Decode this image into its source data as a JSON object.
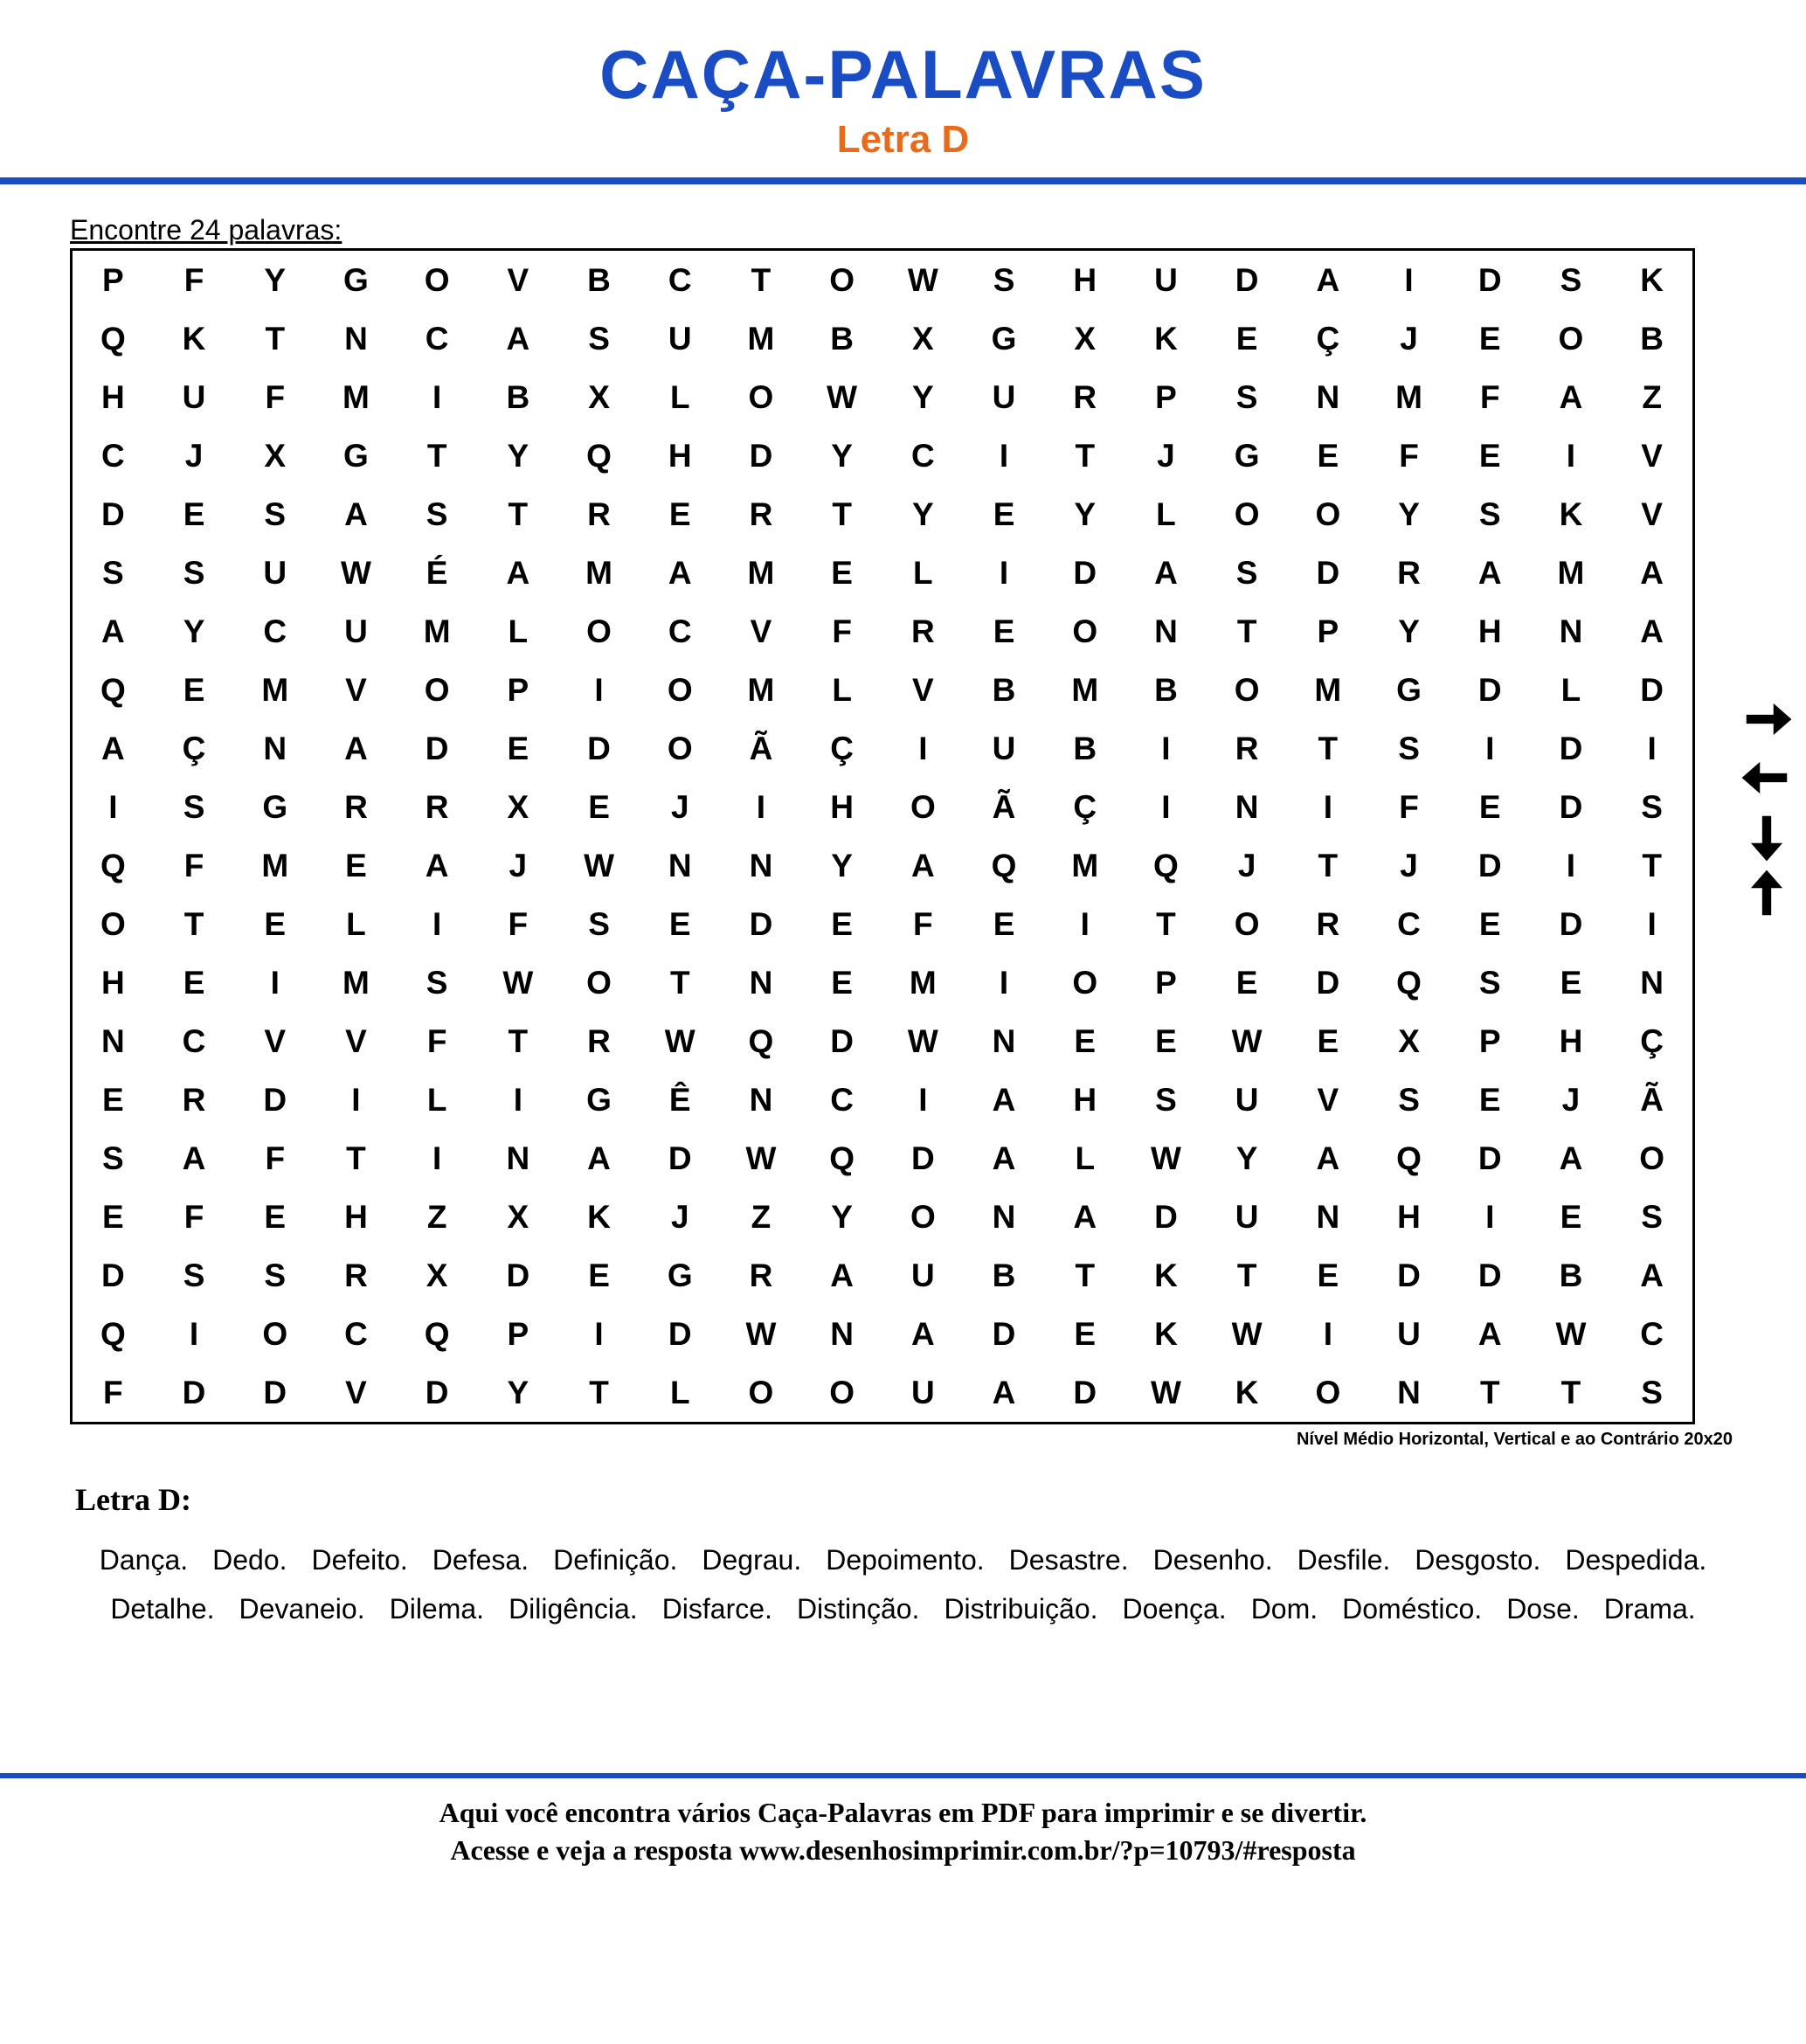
{
  "colors": {
    "title": "#1a4cc4",
    "subtitle": "#e86b1c",
    "rule": "#1a4cc4",
    "text": "#000000",
    "background": "#ffffff"
  },
  "header": {
    "title": "CAÇA-PALAVRAS",
    "subtitle": "Letra D"
  },
  "instruction": "Encontre 24 palavras:",
  "puzzle": {
    "cols": 20,
    "rows": 20,
    "grid": [
      [
        "P",
        "F",
        "Y",
        "G",
        "O",
        "V",
        "B",
        "C",
        "T",
        "O",
        "W",
        "S",
        "H",
        "U",
        "D",
        "A",
        "I",
        "D",
        "S",
        "K"
      ],
      [
        "Q",
        "K",
        "T",
        "N",
        "C",
        "A",
        "S",
        "U",
        "M",
        "B",
        "X",
        "G",
        "X",
        "K",
        "E",
        "Ç",
        "J",
        "E",
        "O",
        "B"
      ],
      [
        "H",
        "U",
        "F",
        "M",
        "I",
        "B",
        "X",
        "L",
        "O",
        "W",
        "Y",
        "U",
        "R",
        "P",
        "S",
        "N",
        "M",
        "F",
        "A",
        "Z"
      ],
      [
        "C",
        "J",
        "X",
        "G",
        "T",
        "Y",
        "Q",
        "H",
        "D",
        "Y",
        "C",
        "I",
        "T",
        "J",
        "G",
        "E",
        "F",
        "E",
        "I",
        "V"
      ],
      [
        "D",
        "E",
        "S",
        "A",
        "S",
        "T",
        "R",
        "E",
        "R",
        "T",
        "Y",
        "E",
        "Y",
        "L",
        "O",
        "O",
        "Y",
        "S",
        "K",
        "V"
      ],
      [
        "S",
        "S",
        "U",
        "W",
        "É",
        "A",
        "M",
        "A",
        "M",
        "E",
        "L",
        "I",
        "D",
        "A",
        "S",
        "D",
        "R",
        "A",
        "M",
        "A"
      ],
      [
        "A",
        "Y",
        "C",
        "U",
        "M",
        "L",
        "O",
        "C",
        "V",
        "F",
        "R",
        "E",
        "O",
        "N",
        "T",
        "P",
        "Y",
        "H",
        "N",
        "A"
      ],
      [
        "Q",
        "E",
        "M",
        "V",
        "O",
        "P",
        "I",
        "O",
        "M",
        "L",
        "V",
        "B",
        "M",
        "B",
        "O",
        "M",
        "G",
        "D",
        "L",
        "D"
      ],
      [
        "A",
        "Ç",
        "N",
        "A",
        "D",
        "E",
        "D",
        "O",
        "Ã",
        "Ç",
        "I",
        "U",
        "B",
        "I",
        "R",
        "T",
        "S",
        "I",
        "D",
        "I"
      ],
      [
        "I",
        "S",
        "G",
        "R",
        "R",
        "X",
        "E",
        "J",
        "I",
        "H",
        "O",
        "Ã",
        "Ç",
        "I",
        "N",
        "I",
        "F",
        "E",
        "D",
        "S"
      ],
      [
        "Q",
        "F",
        "M",
        "E",
        "A",
        "J",
        "W",
        "N",
        "N",
        "Y",
        "A",
        "Q",
        "M",
        "Q",
        "J",
        "T",
        "J",
        "D",
        "I",
        "T"
      ],
      [
        "O",
        "T",
        "E",
        "L",
        "I",
        "F",
        "S",
        "E",
        "D",
        "E",
        "F",
        "E",
        "I",
        "T",
        "O",
        "R",
        "C",
        "E",
        "D",
        "I"
      ],
      [
        "H",
        "E",
        "I",
        "M",
        "S",
        "W",
        "O",
        "T",
        "N",
        "E",
        "M",
        "I",
        "O",
        "P",
        "E",
        "D",
        "Q",
        "S",
        "E",
        "N"
      ],
      [
        "N",
        "C",
        "V",
        "V",
        "F",
        "T",
        "R",
        "W",
        "Q",
        "D",
        "W",
        "N",
        "E",
        "E",
        "W",
        "E",
        "X",
        "P",
        "H",
        "Ç"
      ],
      [
        "E",
        "R",
        "D",
        "I",
        "L",
        "I",
        "G",
        "Ê",
        "N",
        "C",
        "I",
        "A",
        "H",
        "S",
        "U",
        "V",
        "S",
        "E",
        "J",
        "Ã"
      ],
      [
        "S",
        "A",
        "F",
        "T",
        "I",
        "N",
        "A",
        "D",
        "W",
        "Q",
        "D",
        "A",
        "L",
        "W",
        "Y",
        "A",
        "Q",
        "D",
        "A",
        "O"
      ],
      [
        "E",
        "F",
        "E",
        "H",
        "Z",
        "X",
        "K",
        "J",
        "Z",
        "Y",
        "O",
        "N",
        "A",
        "D",
        "U",
        "N",
        "H",
        "I",
        "E",
        "S"
      ],
      [
        "D",
        "S",
        "S",
        "R",
        "X",
        "D",
        "E",
        "G",
        "R",
        "A",
        "U",
        "B",
        "T",
        "K",
        "T",
        "E",
        "D",
        "D",
        "B",
        "A"
      ],
      [
        "Q",
        "I",
        "O",
        "C",
        "Q",
        "P",
        "I",
        "D",
        "W",
        "N",
        "A",
        "D",
        "E",
        "K",
        "W",
        "I",
        "U",
        "A",
        "W",
        "C"
      ],
      [
        "F",
        "D",
        "D",
        "V",
        "D",
        "Y",
        "T",
        "L",
        "O",
        "O",
        "U",
        "A",
        "D",
        "W",
        "K",
        "O",
        "N",
        "T",
        "T",
        "S"
      ]
    ],
    "arrows": [
      "right",
      "left",
      "down",
      "up"
    ],
    "footnote": "Nível Médio Horizontal, Vertical e ao Contrário 20x20"
  },
  "wordlist": {
    "title": "Letra D:",
    "words": [
      "Dança.",
      "Dedo.",
      "Defeito.",
      "Defesa.",
      "Definição.",
      "Degrau.",
      "Depoimento.",
      "Desastre.",
      "Desenho.",
      "Desfile.",
      "Desgosto.",
      "Despedida.",
      "Detalhe.",
      "Devaneio.",
      "Dilema.",
      "Diligência.",
      "Disfarce.",
      "Distinção.",
      "Distribuição.",
      "Doença.",
      "Dom.",
      "Doméstico.",
      "Dose.",
      "Drama."
    ]
  },
  "footer": {
    "line1": "Aqui você encontra vários Caça-Palavras em PDF para imprimir e se divertir.",
    "line2": "Acesse e veja a resposta  www.desenhosimprimir.com.br/?p=10793/#resposta"
  }
}
